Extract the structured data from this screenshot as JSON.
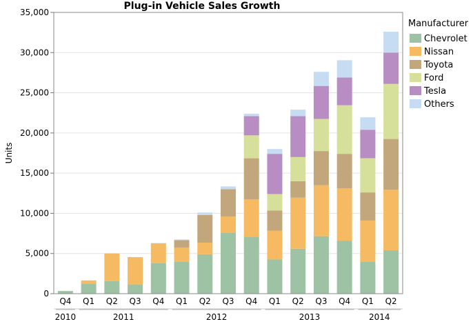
{
  "chart_data": {
    "type": "bar",
    "stacked": true,
    "title": "Plug-in Vehicle Sales Growth",
    "xlabel": "",
    "ylabel": "Units",
    "ylim": [
      0,
      35000
    ],
    "yticks": [
      0,
      5000,
      10000,
      15000,
      20000,
      25000,
      30000,
      35000
    ],
    "ytick_labels": [
      "0",
      "5,000",
      "10,000",
      "15,000",
      "20,000",
      "25,000",
      "30,000",
      "35,000"
    ],
    "grid": true,
    "categories": [
      "Q4",
      "Q1",
      "Q2",
      "Q3",
      "Q4",
      "Q1",
      "Q2",
      "Q3",
      "Q4",
      "Q1",
      "Q2",
      "Q3",
      "Q4",
      "Q1",
      "Q2"
    ],
    "years": [
      {
        "label": "2010",
        "start": 0,
        "end": 0
      },
      {
        "label": "2011",
        "start": 1,
        "end": 4
      },
      {
        "label": "2012",
        "start": 5,
        "end": 8
      },
      {
        "label": "2013",
        "start": 9,
        "end": 12
      },
      {
        "label": "2014",
        "start": 13,
        "end": 14
      }
    ],
    "legend_title": "Manufacturer",
    "legend_position": "right",
    "series": [
      {
        "name": "Chevrolet",
        "color": "#9dc3a4",
        "values": [
          330,
          1200,
          1550,
          1150,
          3800,
          3950,
          4900,
          7550,
          7100,
          4250,
          5600,
          7150,
          6600,
          3950,
          5400
        ]
      },
      {
        "name": "Nissan",
        "color": "#f5ba62",
        "values": [
          0,
          450,
          3450,
          3400,
          2450,
          1800,
          1450,
          2050,
          4650,
          3600,
          6350,
          6350,
          6500,
          5150,
          7550
        ]
      },
      {
        "name": "Toyota",
        "color": "#c3a77c",
        "values": [
          0,
          0,
          0,
          0,
          30,
          900,
          3450,
          3400,
          5100,
          2500,
          2050,
          4250,
          4300,
          3500,
          6300
        ]
      },
      {
        "name": "Ford",
        "color": "#d6e09a",
        "values": [
          0,
          0,
          0,
          0,
          0,
          0,
          0,
          0,
          2850,
          2050,
          3000,
          4000,
          6050,
          4250,
          6850
        ]
      },
      {
        "name": "Tesla",
        "color": "#b78dc3",
        "values": [
          0,
          0,
          0,
          0,
          0,
          0,
          0,
          0,
          2400,
          5000,
          5100,
          4100,
          3450,
          3550,
          3900
        ]
      },
      {
        "name": "Others",
        "color": "#c6dcf3",
        "values": [
          0,
          0,
          0,
          0,
          30,
          100,
          300,
          350,
          300,
          600,
          800,
          1750,
          2150,
          1550,
          2600
        ]
      }
    ]
  }
}
